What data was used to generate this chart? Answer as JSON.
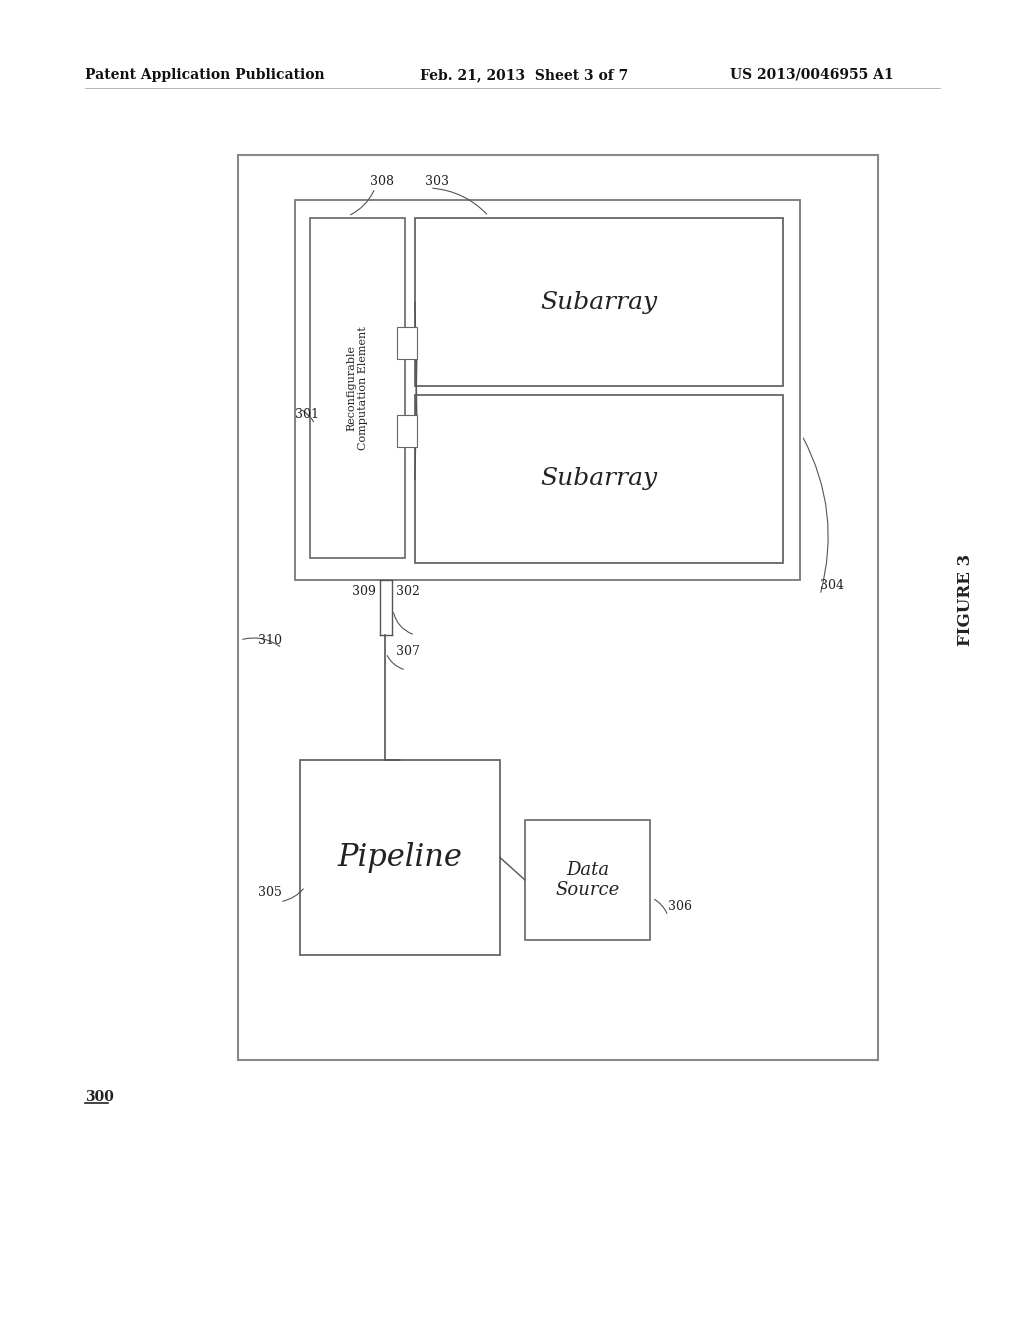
{
  "bg_color": "#ffffff",
  "header_left": "Patent Application Publication",
  "header_center": "Feb. 21, 2013  Sheet 3 of 7",
  "header_right": "US 2013/0046955 A1",
  "figure_label": "FIGURE 3",
  "label_300": "300",
  "label_301": "301",
  "label_302": "302",
  "label_303": "303",
  "label_304": "304",
  "label_305": "305",
  "label_306": "306",
  "label_307": "307",
  "label_308": "308",
  "label_309": "309",
  "label_310": "310",
  "text_rce": "Reconfigurable\nComputation Element",
  "text_subarray": "Subarray",
  "text_pipeline": "Pipeline",
  "text_datasource": "Data\nSource"
}
